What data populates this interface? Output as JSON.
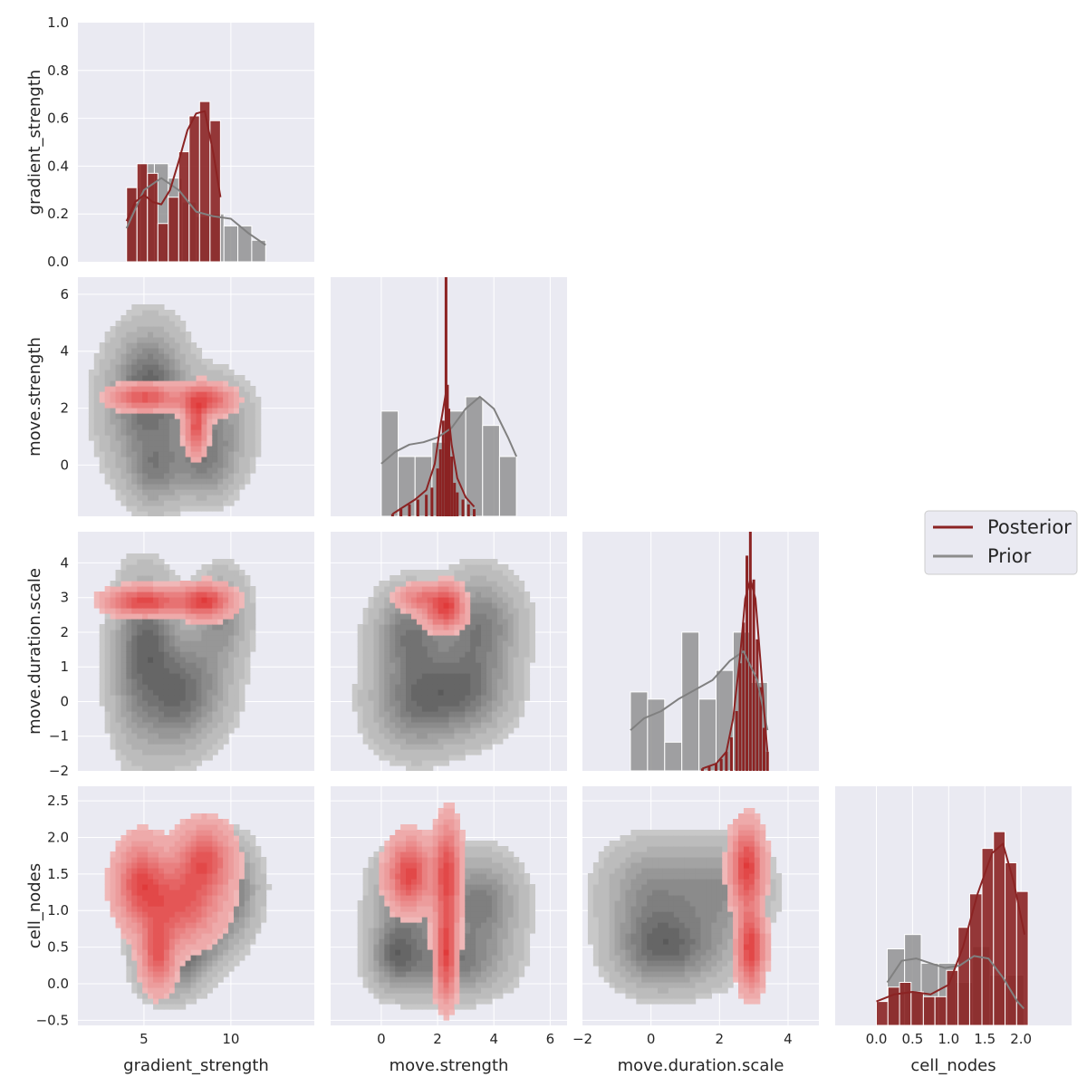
{
  "legend": {
    "entries": [
      {
        "label": "Posterior",
        "color": "#8b2323"
      },
      {
        "label": "Prior",
        "color": "#8c8c8c"
      }
    ]
  },
  "colors": {
    "posterior": "#8b2323",
    "prior": "#8c8c8c",
    "posterior_kde_light": "#f0b8b8",
    "posterior_kde_dark": "#e03a3a",
    "prior_kde_light": "#c8c8c8",
    "prior_kde_dark": "#5a5a5a",
    "panel_bg": "#eaeaf2",
    "grid": "#ffffff"
  },
  "chart_data": {
    "type": "pairplot",
    "variables": [
      "gradient_strength",
      "move.strength",
      "move.duration.scale",
      "cell_nodes"
    ],
    "axis_labels": {
      "x": [
        "gradient_strength",
        "move.strength",
        "move.duration.scale",
        "cell_nodes"
      ],
      "y": [
        "gradient_strength",
        "move.strength",
        "move.duration.scale",
        "cell_nodes"
      ]
    },
    "ranges": {
      "gradient_strength": [
        1.2,
        14.8
      ],
      "move.strength": [
        -1.8,
        6.6
      ],
      "move.duration.scale": [
        -2.0,
        4.9
      ],
      "cell_nodes": [
        -0.57,
        2.7
      ]
    },
    "ticks": {
      "gradient_strength": [
        5,
        10
      ],
      "move.strength": [
        0,
        2,
        4,
        6
      ],
      "move.duration.scale": [
        -2,
        0,
        2,
        4
      ],
      "cell_nodes_y": [
        -0.5,
        0.0,
        0.5,
        1.0,
        1.5,
        2.0,
        2.5
      ],
      "cell_nodes_x": [
        0.0,
        0.5,
        1.0,
        1.5,
        2.0
      ],
      "move.strength_y": [
        0,
        2,
        4,
        6
      ],
      "move.duration.scale_y": [
        -2,
        -1,
        0,
        1,
        2,
        3,
        4
      ],
      "density": [
        0.0,
        0.2,
        0.4,
        0.6,
        0.8,
        1.0
      ]
    },
    "tick_labels": {
      "gradient_strength": [
        "5",
        "10"
      ],
      "move.strength": [
        "0",
        "2",
        "4",
        "6"
      ],
      "move.duration.scale": [
        "−2",
        "0",
        "2",
        "4"
      ],
      "cell_nodes_y": [
        "−0.5",
        "0.0",
        "0.5",
        "1.0",
        "1.5",
        "2.0",
        "2.5"
      ],
      "cell_nodes_x": [
        "0.0",
        "0.5",
        "1.0",
        "1.5",
        "2.0"
      ],
      "move.strength_y": [
        "0",
        "2",
        "4",
        "6"
      ],
      "move.duration.scale_y": [
        "−2",
        "−1",
        "0",
        "1",
        "2",
        "3",
        "4"
      ],
      "density": [
        "0.0",
        "0.2",
        "0.4",
        "0.6",
        "0.8",
        "1.0"
      ]
    },
    "diagonal_histograms": [
      {
        "variable": "gradient_strength",
        "ylim": [
          0,
          1.0
        ],
        "prior": {
          "edges": [
            4,
            4.8,
            5.6,
            6.4,
            7.2,
            8.0,
            8.8,
            9.6,
            10.4,
            11.2,
            12.0
          ],
          "counts": [
            0.31,
            0.41,
            0.41,
            0.35,
            0.25,
            0.19,
            0.2,
            0.15,
            0.15,
            0.09
          ],
          "kde": {
            "x": [
              4,
              5,
              6,
              7,
              8,
              9,
              10,
              11,
              12
            ],
            "y": [
              0.14,
              0.3,
              0.35,
              0.3,
              0.21,
              0.19,
              0.18,
              0.12,
              0.07
            ]
          }
        },
        "posterior": {
          "edges": [
            4.0,
            4.6,
            5.2,
            5.8,
            6.4,
            7.0,
            7.6,
            8.2,
            8.8,
            9.4
          ],
          "counts": [
            0.31,
            0.41,
            0.37,
            0.16,
            0.27,
            0.46,
            0.61,
            0.67,
            0.59
          ],
          "kde": {
            "x": [
              4.0,
              4.5,
              5.0,
              5.5,
              6.0,
              6.5,
              7.0,
              7.5,
              8.0,
              8.5,
              9.0,
              9.4
            ],
            "y": [
              0.17,
              0.25,
              0.28,
              0.25,
              0.24,
              0.3,
              0.42,
              0.55,
              0.62,
              0.63,
              0.45,
              0.27
            ]
          }
        }
      },
      {
        "variable": "move.strength",
        "prior": {
          "edges": [
            0.0,
            0.6,
            1.2,
            1.8,
            2.4,
            3.0,
            3.6,
            4.2,
            4.8
          ],
          "counts": [
            0.44,
            0.25,
            0.25,
            0.31,
            0.44,
            0.5,
            0.38,
            0.25
          ],
          "kde": {
            "x": [
              0,
              0.5,
              1,
              1.5,
              2,
              2.5,
              3,
              3.5,
              4,
              4.5,
              4.8
            ],
            "y": [
              0.22,
              0.27,
              0.3,
              0.31,
              0.33,
              0.37,
              0.45,
              0.5,
              0.45,
              0.33,
              0.25
            ]
          }
        },
        "posterior": {
          "x": [
            0.4,
            0.7,
            1.0,
            1.3,
            1.6,
            1.8,
            2.0,
            2.1,
            2.2,
            2.3,
            2.35,
            2.4,
            2.5,
            2.6,
            2.7,
            2.9,
            3.1,
            3.3
          ],
          "counts": [
            0.01,
            0.03,
            0.05,
            0.07,
            0.09,
            0.12,
            0.2,
            0.28,
            0.4,
            1.0,
            0.55,
            0.45,
            0.25,
            0.14,
            0.1,
            0.07,
            0.05,
            0.03
          ],
          "kde": {
            "x": [
              0.4,
              0.8,
              1.2,
              1.6,
              1.9,
              2.1,
              2.3,
              2.5,
              2.7,
              3.0,
              3.3
            ],
            "y": [
              0.01,
              0.04,
              0.07,
              0.11,
              0.22,
              0.38,
              0.52,
              0.3,
              0.16,
              0.08,
              0.04
            ]
          }
        }
      },
      {
        "variable": "move.duration.scale",
        "prior": {
          "edges": [
            -0.6,
            -0.1,
            0.4,
            0.9,
            1.4,
            1.9,
            2.4,
            2.9,
            3.4
          ],
          "counts": [
            0.33,
            0.3,
            0.12,
            0.58,
            0.3,
            0.42,
            0.58,
            0.37
          ],
          "kde": {
            "x": [
              -0.6,
              -0.2,
              0.3,
              0.8,
              1.3,
              1.8,
              2.3,
              2.7,
              3.1,
              3.4
            ],
            "y": [
              0.17,
              0.22,
              0.25,
              0.3,
              0.34,
              0.38,
              0.46,
              0.5,
              0.38,
              0.17
            ]
          }
        },
        "posterior": {
          "x": [
            1.5,
            1.7,
            1.9,
            2.05,
            2.2,
            2.35,
            2.5,
            2.6,
            2.7,
            2.8,
            2.9,
            3.0,
            3.1,
            3.2,
            3.3,
            3.4
          ],
          "counts": [
            0.01,
            0.02,
            0.03,
            0.05,
            0.08,
            0.14,
            0.25,
            0.45,
            0.62,
            0.9,
            1.0,
            0.8,
            0.55,
            0.35,
            0.18,
            0.08
          ],
          "kde": {
            "x": [
              1.5,
              1.9,
              2.2,
              2.4,
              2.6,
              2.75,
              2.9,
              3.05,
              3.2,
              3.35,
              3.4
            ],
            "y": [
              0.01,
              0.03,
              0.08,
              0.22,
              0.48,
              0.72,
              0.8,
              0.72,
              0.45,
              0.16,
              0.08
            ]
          }
        }
      },
      {
        "variable": "cell_nodes",
        "prior": {
          "edges": [
            0.15,
            0.39,
            0.62,
            0.86,
            1.1,
            1.33,
            1.57,
            1.81,
            2.04
          ],
          "counts": [
            0.32,
            0.38,
            0.26,
            0.26,
            0.18,
            0.33,
            0.21,
            0.21
          ],
          "kde": {
            "x": [
              0.15,
              0.35,
              0.55,
              0.75,
              0.95,
              1.15,
              1.35,
              1.55,
              1.75,
              1.95,
              2.04
            ],
            "y": [
              0.18,
              0.27,
              0.28,
              0.26,
              0.24,
              0.25,
              0.29,
              0.28,
              0.2,
              0.1,
              0.07
            ]
          }
        },
        "posterior": {
          "edges": [
            0.0,
            0.16,
            0.32,
            0.48,
            0.65,
            0.81,
            0.97,
            1.13,
            1.29,
            1.46,
            1.62,
            1.78,
            1.94,
            2.1
          ],
          "counts": [
            0.1,
            0.16,
            0.18,
            0.14,
            0.12,
            0.12,
            0.23,
            0.41,
            0.55,
            0.74,
            0.81,
            0.68,
            0.56
          ],
          "kde": {
            "x": [
              0.0,
              0.25,
              0.5,
              0.75,
              1.0,
              1.2,
              1.4,
              1.6,
              1.75,
              1.9,
              2.05
            ],
            "y": [
              0.1,
              0.13,
              0.14,
              0.13,
              0.17,
              0.33,
              0.55,
              0.72,
              0.76,
              0.6,
              0.38
            ]
          }
        }
      }
    ],
    "kde_panels": [
      {
        "x": "gradient_strength",
        "y": "move.strength",
        "prior_modes": [
          [
            5.5,
            3.0,
            1.2,
            1.2
          ],
          [
            8.8,
            1.5,
            1.5,
            1.0
          ],
          [
            5.6,
            -0.2,
            1.0,
            0.8
          ],
          [
            8.5,
            0.0,
            1.2,
            0.8
          ],
          [
            4.8,
            2.0,
            1.5,
            1.5
          ]
        ],
        "posterior_modes": [
          [
            5.0,
            2.4,
            1.2,
            0.3
          ],
          [
            8.5,
            2.3,
            1.0,
            0.35
          ],
          [
            8.0,
            1.3,
            0.4,
            0.6
          ]
        ]
      },
      {
        "x": "gradient_strength",
        "y": "move.duration.scale",
        "prior_modes": [
          [
            5.5,
            2.0,
            1.0,
            1.0
          ],
          [
            6.5,
            0.0,
            1.2,
            1.0
          ],
          [
            9.5,
            2.5,
            1.0,
            0.8
          ],
          [
            8.0,
            0.5,
            1.4,
            1.0
          ],
          [
            4.5,
            1.0,
            1.0,
            1.5
          ]
        ],
        "posterior_modes": [
          [
            5.0,
            2.9,
            1.3,
            0.25
          ],
          [
            8.5,
            2.9,
            1.0,
            0.3
          ]
        ]
      },
      {
        "x": "move.strength",
        "y": "move.duration.scale",
        "prior_modes": [
          [
            3.5,
            2.2,
            0.9,
            0.9
          ],
          [
            1.0,
            2.0,
            0.8,
            0.8
          ],
          [
            3.0,
            0.3,
            1.0,
            0.8
          ],
          [
            1.2,
            0.0,
            1.0,
            0.9
          ]
        ],
        "posterior_modes": [
          [
            1.5,
            3.0,
            0.6,
            0.25
          ],
          [
            2.4,
            2.9,
            0.35,
            0.35
          ],
          [
            2.2,
            2.5,
            0.5,
            0.3
          ]
        ]
      },
      {
        "x": "gradient_strength",
        "y": "cell_nodes",
        "prior_modes": [
          [
            5.5,
            1.3,
            1.2,
            0.35
          ],
          [
            8.0,
            0.7,
            1.2,
            0.3
          ],
          [
            10.0,
            1.3,
            1.0,
            0.4
          ],
          [
            6.5,
            0.3,
            1.2,
            0.3
          ]
        ],
        "posterior_modes": [
          [
            8.5,
            1.7,
            1.0,
            0.3
          ],
          [
            4.8,
            1.4,
            0.9,
            0.35
          ],
          [
            5.8,
            0.4,
            0.6,
            0.3
          ],
          [
            7.0,
            1.1,
            1.5,
            0.35
          ]
        ]
      },
      {
        "x": "move.strength",
        "y": "cell_nodes",
        "prior_modes": [
          [
            3.5,
            1.1,
            0.9,
            0.4
          ],
          [
            1.0,
            1.2,
            0.8,
            0.4
          ],
          [
            2.5,
            0.3,
            1.2,
            0.3
          ],
          [
            0.5,
            0.4,
            0.6,
            0.3
          ]
        ],
        "posterior_modes": [
          [
            2.35,
            1.5,
            0.3,
            0.45
          ],
          [
            2.3,
            0.4,
            0.25,
            0.4
          ],
          [
            1.0,
            1.5,
            0.5,
            0.3
          ]
        ]
      },
      {
        "x": "move.duration.scale",
        "y": "cell_nodes",
        "prior_modes": [
          [
            0.0,
            1.3,
            0.9,
            0.4
          ],
          [
            2.0,
            1.3,
            0.9,
            0.4
          ],
          [
            1.0,
            0.5,
            1.0,
            0.35
          ],
          [
            0.0,
            0.5,
            0.8,
            0.35
          ]
        ],
        "posterior_modes": [
          [
            2.8,
            1.6,
            0.3,
            0.35
          ],
          [
            2.9,
            0.5,
            0.25,
            0.35
          ]
        ]
      }
    ]
  }
}
